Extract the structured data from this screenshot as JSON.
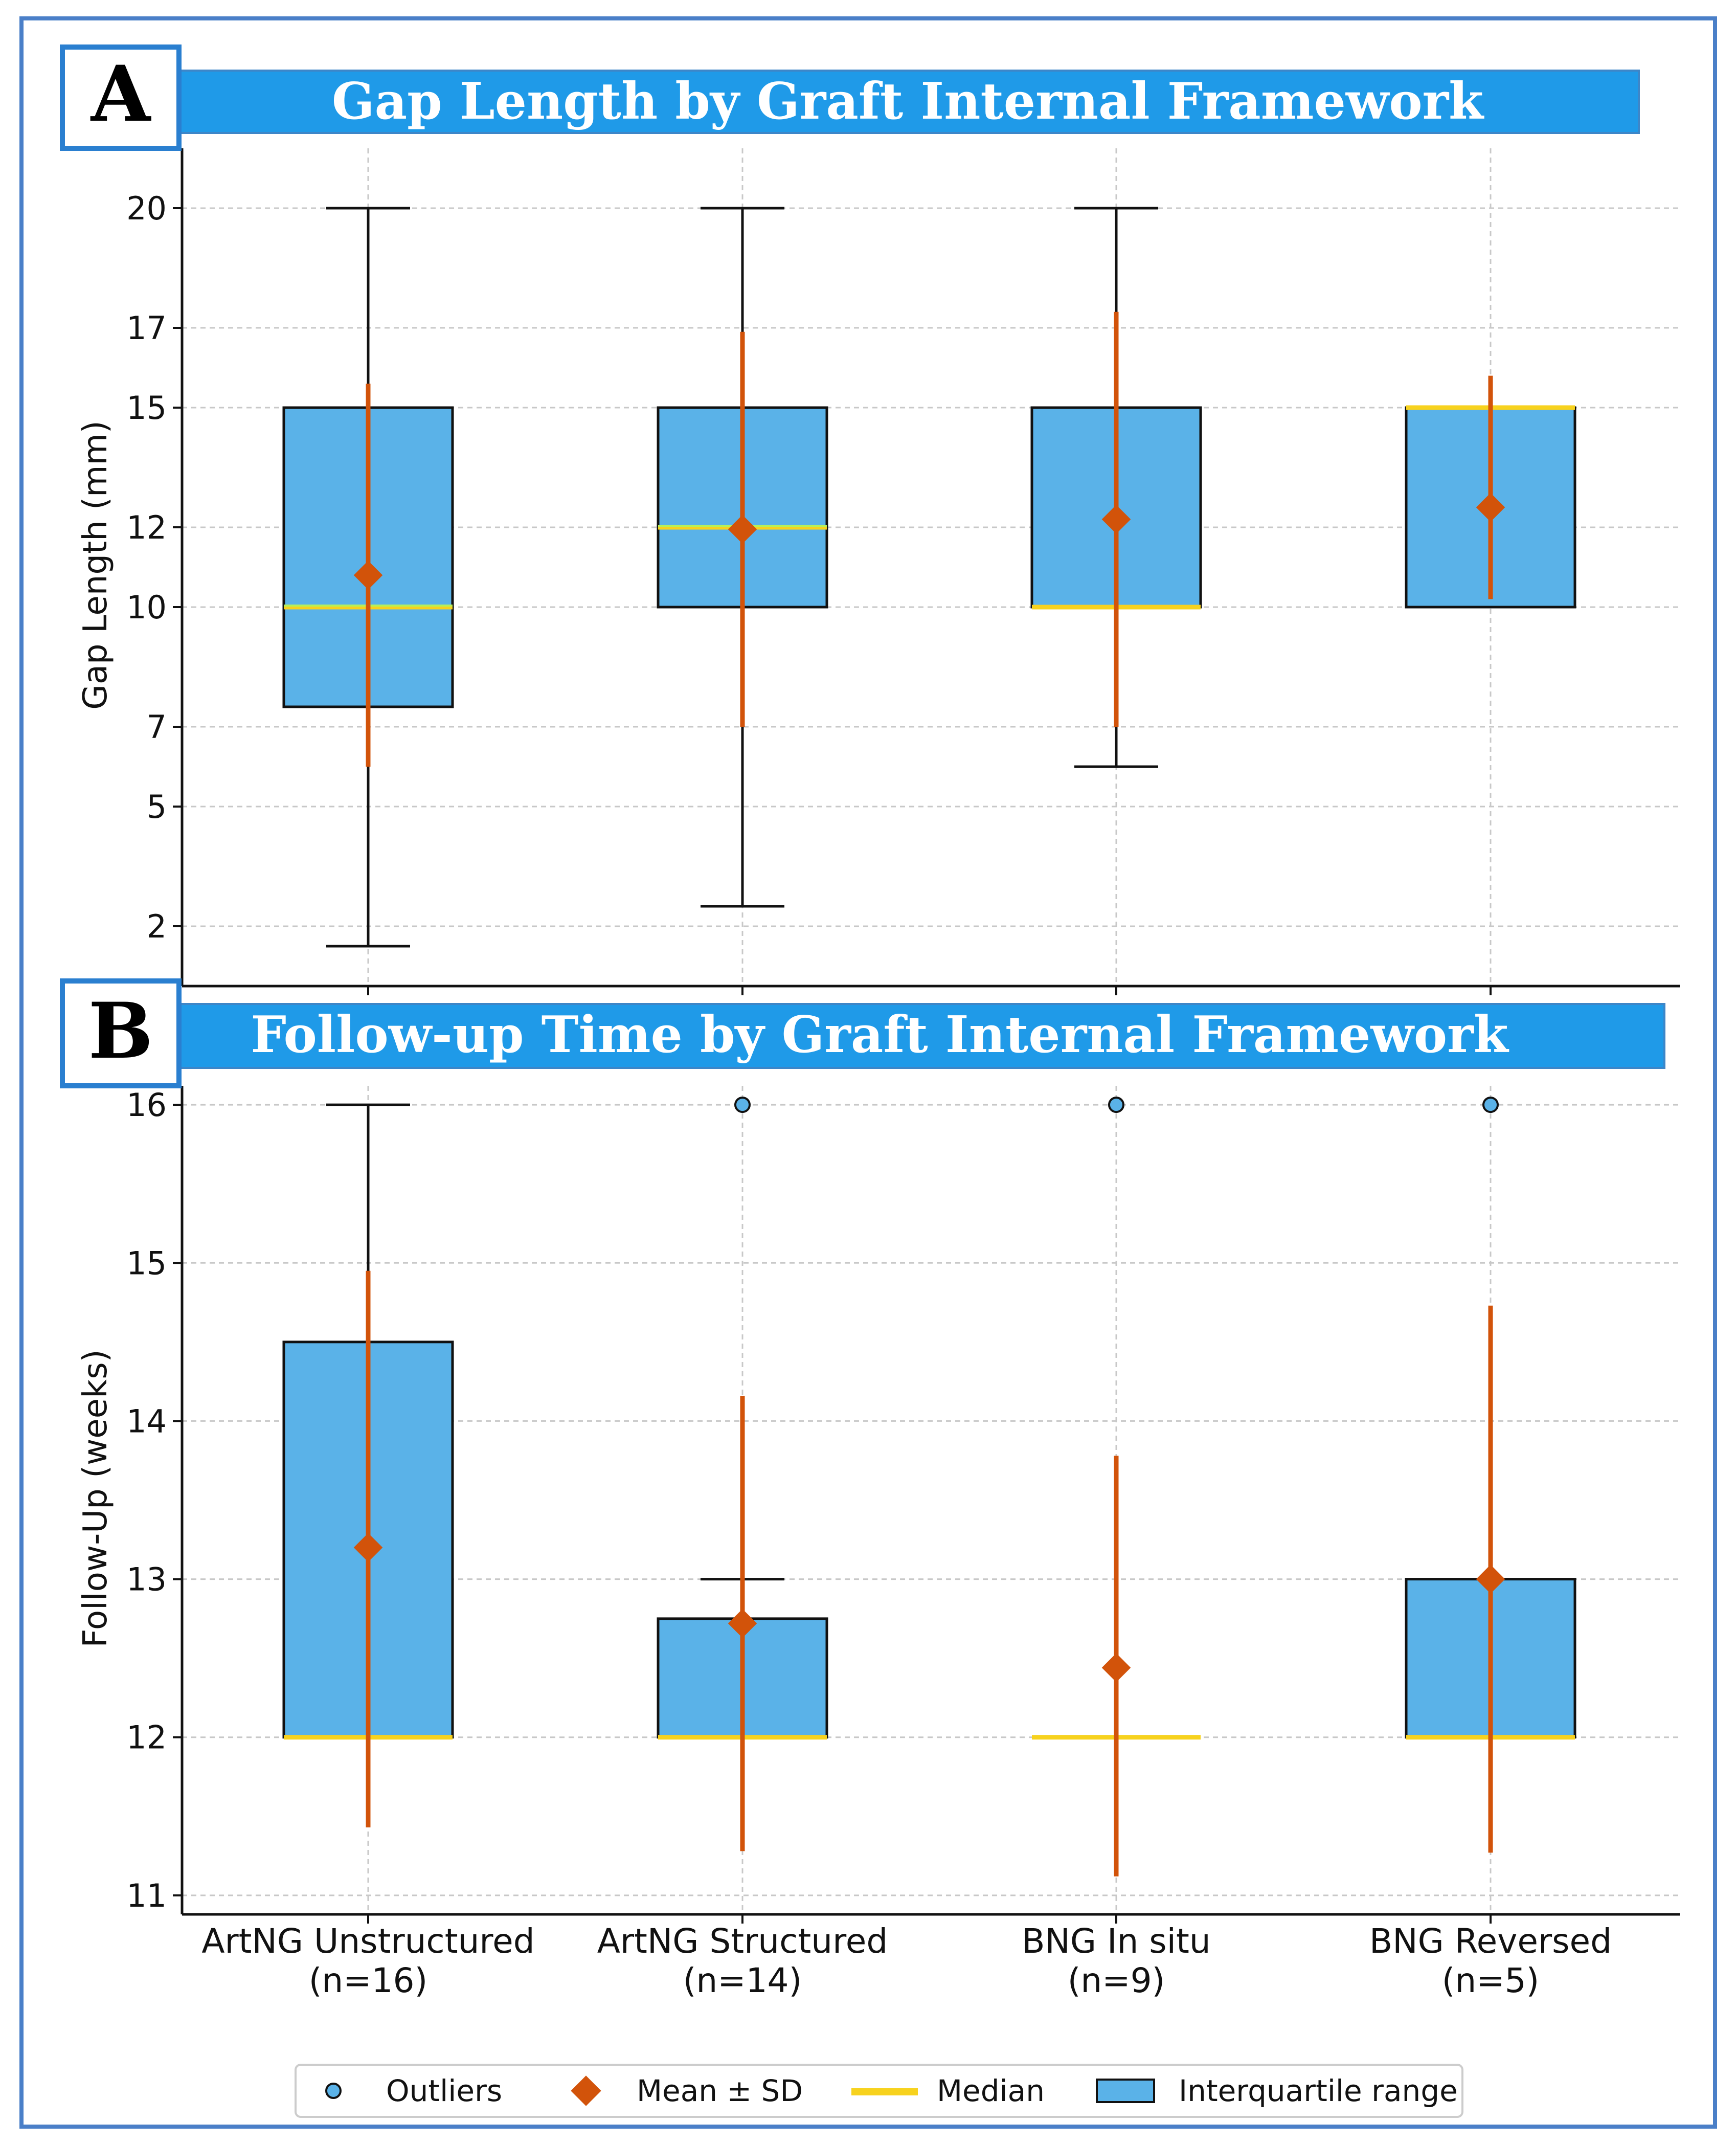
{
  "colors": {
    "frame": "#4a7fc8",
    "title_bar": "#1f9ae8",
    "box_fill": "#5ab2e8",
    "median": "#f7d21e",
    "median_highlight": "#b6f05a",
    "mean": "#d2530a",
    "whisker": "#111111",
    "outlier": "#5ab2e8",
    "grid": "#c8c8c8"
  },
  "categories": [
    {
      "name": "ArtNG Unstructured",
      "n": "(n=16)"
    },
    {
      "name": "ArtNG Structured",
      "n": "(n=14)"
    },
    {
      "name": "BNG In situ",
      "n": "(n=9)"
    },
    {
      "name": "BNG Reversed",
      "n": "(n=5)"
    }
  ],
  "legend": {
    "outliers": "Outliers",
    "mean_sd": "Mean ± SD",
    "median": "Median",
    "iqr": "Interquartile range"
  },
  "chart_data": [
    {
      "type": "box",
      "panel_letter": "A",
      "title": "Gap Length by Graft Internal Framework",
      "ylabel": "Gap Length (mm)",
      "ylim": [
        0.5,
        21.5
      ],
      "yticks": [
        2,
        5,
        7,
        10,
        12,
        15,
        17,
        20
      ],
      "grid": true,
      "series": [
        {
          "category": "ArtNG Unstructured",
          "whisker_low": 1.5,
          "q1": 7.5,
          "median": 10,
          "q3": 15,
          "whisker_high": 20,
          "mean": 10.8,
          "sd_low": 6,
          "sd_high": 15.6,
          "outliers": []
        },
        {
          "category": "ArtNG Structured",
          "whisker_low": 2.5,
          "q1": 10,
          "median": 12,
          "q3": 15,
          "whisker_high": 20,
          "mean": 11.95,
          "sd_low": 7,
          "sd_high": 16.9,
          "outliers": []
        },
        {
          "category": "BNG In situ",
          "whisker_low": 6,
          "q1": 10,
          "median": 10,
          "q3": 15,
          "whisker_high": 20,
          "mean": 12.2,
          "sd_low": 7,
          "sd_high": 17.4,
          "outliers": []
        },
        {
          "category": "BNG Reversed",
          "whisker_low": 10,
          "q1": 10,
          "median": 15,
          "q3": 15,
          "whisker_high": 15,
          "mean": 12.5,
          "sd_low": 10.2,
          "sd_high": 15.8,
          "outliers": []
        }
      ]
    },
    {
      "type": "box",
      "panel_letter": "B",
      "title": "Follow-up Time by Graft Internal Framework",
      "ylabel": "Follow-Up (weeks)",
      "ylim": [
        10.88,
        16.12
      ],
      "yticks": [
        11,
        12,
        13,
        14,
        15,
        16
      ],
      "grid": true,
      "series": [
        {
          "category": "ArtNG Unstructured",
          "whisker_low": 12,
          "q1": 12,
          "median": 12,
          "q3": 14.5,
          "whisker_high": 16,
          "mean": 13.2,
          "sd_low": 11.43,
          "sd_high": 14.95,
          "outliers": []
        },
        {
          "category": "ArtNG Structured",
          "whisker_low": 12,
          "q1": 12,
          "median": 12,
          "q3": 12.75,
          "whisker_high": 13,
          "mean": 12.72,
          "sd_low": 11.28,
          "sd_high": 14.16,
          "outliers": [
            16
          ]
        },
        {
          "category": "BNG In situ",
          "whisker_low": 12,
          "q1": 12,
          "median": 12,
          "q3": 12,
          "whisker_high": 12,
          "mean": 12.44,
          "sd_low": 11.12,
          "sd_high": 13.78,
          "outliers": [
            16
          ]
        },
        {
          "category": "BNG Reversed",
          "whisker_low": 12,
          "q1": 12,
          "median": 12,
          "q3": 13,
          "whisker_high": 13,
          "mean": 13,
          "sd_low": 11.27,
          "sd_high": 14.73,
          "outliers": [
            16
          ]
        }
      ]
    }
  ]
}
